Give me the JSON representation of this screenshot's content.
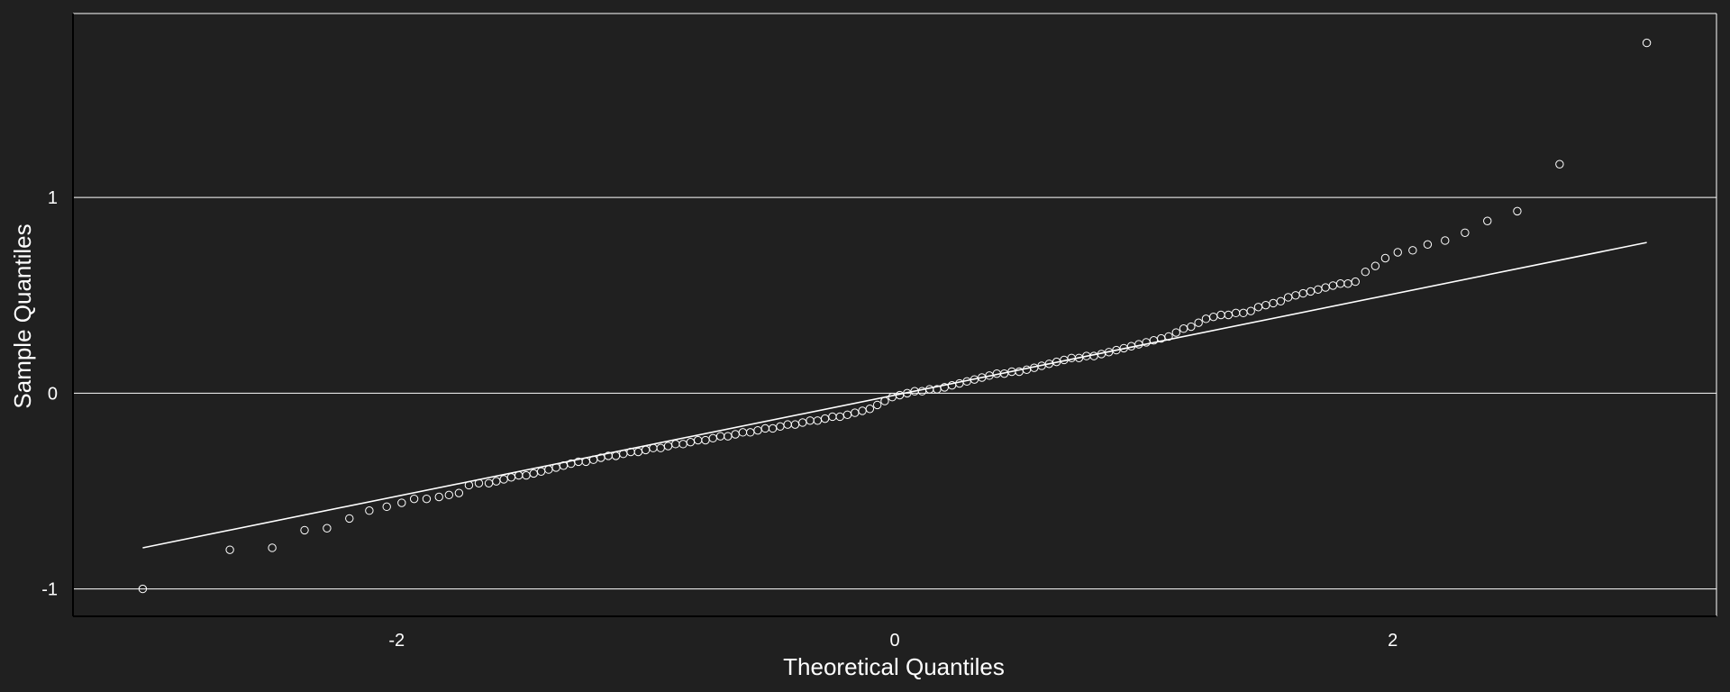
{
  "chart_data": {
    "type": "scatter",
    "title": "",
    "xlabel": "Theoretical Quantiles",
    "ylabel": "Sample Quantiles",
    "xlim": [
      -3.3,
      3.3
    ],
    "ylim": [
      -1.14,
      1.94
    ],
    "xticks": [
      -2,
      0,
      2
    ],
    "xtick_labels": [
      "-2",
      "0",
      "2"
    ],
    "yticks": [
      -1,
      0,
      1
    ],
    "ytick_labels": [
      "-1",
      "0",
      "1"
    ],
    "grid": "horizontal",
    "legend": "none",
    "reference_line": {
      "x": [
        -3.02,
        3.02
      ],
      "y": [
        -0.79,
        0.77
      ]
    },
    "series": [
      {
        "points": [
          [
            -3.02,
            -1.0
          ],
          [
            -2.67,
            -0.8
          ],
          [
            -2.5,
            -0.79
          ],
          [
            -2.37,
            -0.7
          ],
          [
            -2.28,
            -0.69
          ],
          [
            -2.19,
            -0.64
          ],
          [
            -2.11,
            -0.6
          ],
          [
            -2.04,
            -0.58
          ],
          [
            -1.98,
            -0.56
          ],
          [
            -1.93,
            -0.54
          ],
          [
            -1.88,
            -0.54
          ],
          [
            -1.83,
            -0.53
          ],
          [
            -1.79,
            -0.52
          ],
          [
            -1.75,
            -0.51
          ],
          [
            -1.71,
            -0.47
          ],
          [
            -1.67,
            -0.46
          ],
          [
            -1.63,
            -0.46
          ],
          [
            -1.6,
            -0.45
          ],
          [
            -1.57,
            -0.44
          ],
          [
            -1.54,
            -0.43
          ],
          [
            -1.51,
            -0.42
          ],
          [
            -1.48,
            -0.42
          ],
          [
            -1.45,
            -0.41
          ],
          [
            -1.42,
            -0.4
          ],
          [
            -1.39,
            -0.39
          ],
          [
            -1.36,
            -0.38
          ],
          [
            -1.33,
            -0.37
          ],
          [
            -1.3,
            -0.36
          ],
          [
            -1.27,
            -0.35
          ],
          [
            -1.24,
            -0.35
          ],
          [
            -1.21,
            -0.34
          ],
          [
            -1.18,
            -0.33
          ],
          [
            -1.15,
            -0.32
          ],
          [
            -1.12,
            -0.32
          ],
          [
            -1.09,
            -0.31
          ],
          [
            -1.06,
            -0.3
          ],
          [
            -1.03,
            -0.3
          ],
          [
            -1.0,
            -0.29
          ],
          [
            -0.97,
            -0.28
          ],
          [
            -0.94,
            -0.28
          ],
          [
            -0.91,
            -0.27
          ],
          [
            -0.88,
            -0.26
          ],
          [
            -0.85,
            -0.26
          ],
          [
            -0.82,
            -0.25
          ],
          [
            -0.79,
            -0.24
          ],
          [
            -0.76,
            -0.24
          ],
          [
            -0.73,
            -0.23
          ],
          [
            -0.7,
            -0.22
          ],
          [
            -0.67,
            -0.22
          ],
          [
            -0.64,
            -0.21
          ],
          [
            -0.61,
            -0.2
          ],
          [
            -0.58,
            -0.2
          ],
          [
            -0.55,
            -0.19
          ],
          [
            -0.52,
            -0.18
          ],
          [
            -0.49,
            -0.18
          ],
          [
            -0.46,
            -0.17
          ],
          [
            -0.43,
            -0.16
          ],
          [
            -0.4,
            -0.16
          ],
          [
            -0.37,
            -0.15
          ],
          [
            -0.34,
            -0.14
          ],
          [
            -0.31,
            -0.14
          ],
          [
            -0.28,
            -0.13
          ],
          [
            -0.25,
            -0.12
          ],
          [
            -0.22,
            -0.12
          ],
          [
            -0.19,
            -0.11
          ],
          [
            -0.16,
            -0.1
          ],
          [
            -0.13,
            -0.09
          ],
          [
            -0.1,
            -0.08
          ],
          [
            -0.07,
            -0.06
          ],
          [
            -0.04,
            -0.04
          ],
          [
            -0.01,
            -0.02
          ],
          [
            0.02,
            -0.01
          ],
          [
            0.05,
            0.0
          ],
          [
            0.08,
            0.01
          ],
          [
            0.11,
            0.01
          ],
          [
            0.14,
            0.02
          ],
          [
            0.17,
            0.02
          ],
          [
            0.2,
            0.03
          ],
          [
            0.23,
            0.04
          ],
          [
            0.26,
            0.05
          ],
          [
            0.29,
            0.06
          ],
          [
            0.32,
            0.07
          ],
          [
            0.35,
            0.08
          ],
          [
            0.38,
            0.09
          ],
          [
            0.41,
            0.1
          ],
          [
            0.44,
            0.1
          ],
          [
            0.47,
            0.11
          ],
          [
            0.5,
            0.11
          ],
          [
            0.53,
            0.12
          ],
          [
            0.56,
            0.13
          ],
          [
            0.59,
            0.14
          ],
          [
            0.62,
            0.15
          ],
          [
            0.65,
            0.16
          ],
          [
            0.68,
            0.17
          ],
          [
            0.71,
            0.18
          ],
          [
            0.74,
            0.18
          ],
          [
            0.77,
            0.19
          ],
          [
            0.8,
            0.19
          ],
          [
            0.83,
            0.2
          ],
          [
            0.86,
            0.21
          ],
          [
            0.89,
            0.22
          ],
          [
            0.92,
            0.23
          ],
          [
            0.95,
            0.24
          ],
          [
            0.98,
            0.25
          ],
          [
            1.01,
            0.26
          ],
          [
            1.04,
            0.27
          ],
          [
            1.07,
            0.28
          ],
          [
            1.1,
            0.29
          ],
          [
            1.13,
            0.31
          ],
          [
            1.16,
            0.33
          ],
          [
            1.19,
            0.34
          ],
          [
            1.22,
            0.36
          ],
          [
            1.25,
            0.38
          ],
          [
            1.28,
            0.39
          ],
          [
            1.31,
            0.4
          ],
          [
            1.34,
            0.4
          ],
          [
            1.37,
            0.41
          ],
          [
            1.4,
            0.41
          ],
          [
            1.43,
            0.42
          ],
          [
            1.46,
            0.44
          ],
          [
            1.49,
            0.45
          ],
          [
            1.52,
            0.46
          ],
          [
            1.55,
            0.47
          ],
          [
            1.58,
            0.49
          ],
          [
            1.61,
            0.5
          ],
          [
            1.64,
            0.51
          ],
          [
            1.67,
            0.52
          ],
          [
            1.7,
            0.53
          ],
          [
            1.73,
            0.54
          ],
          [
            1.76,
            0.55
          ],
          [
            1.79,
            0.56
          ],
          [
            1.82,
            0.56
          ],
          [
            1.85,
            0.57
          ],
          [
            1.89,
            0.62
          ],
          [
            1.93,
            0.65
          ],
          [
            1.97,
            0.69
          ],
          [
            2.02,
            0.72
          ],
          [
            2.08,
            0.73
          ],
          [
            2.14,
            0.76
          ],
          [
            2.21,
            0.78
          ],
          [
            2.29,
            0.82
          ],
          [
            2.38,
            0.88
          ],
          [
            2.5,
            0.93
          ],
          [
            2.67,
            1.17
          ],
          [
            3.02,
            1.79
          ]
        ]
      }
    ]
  }
}
